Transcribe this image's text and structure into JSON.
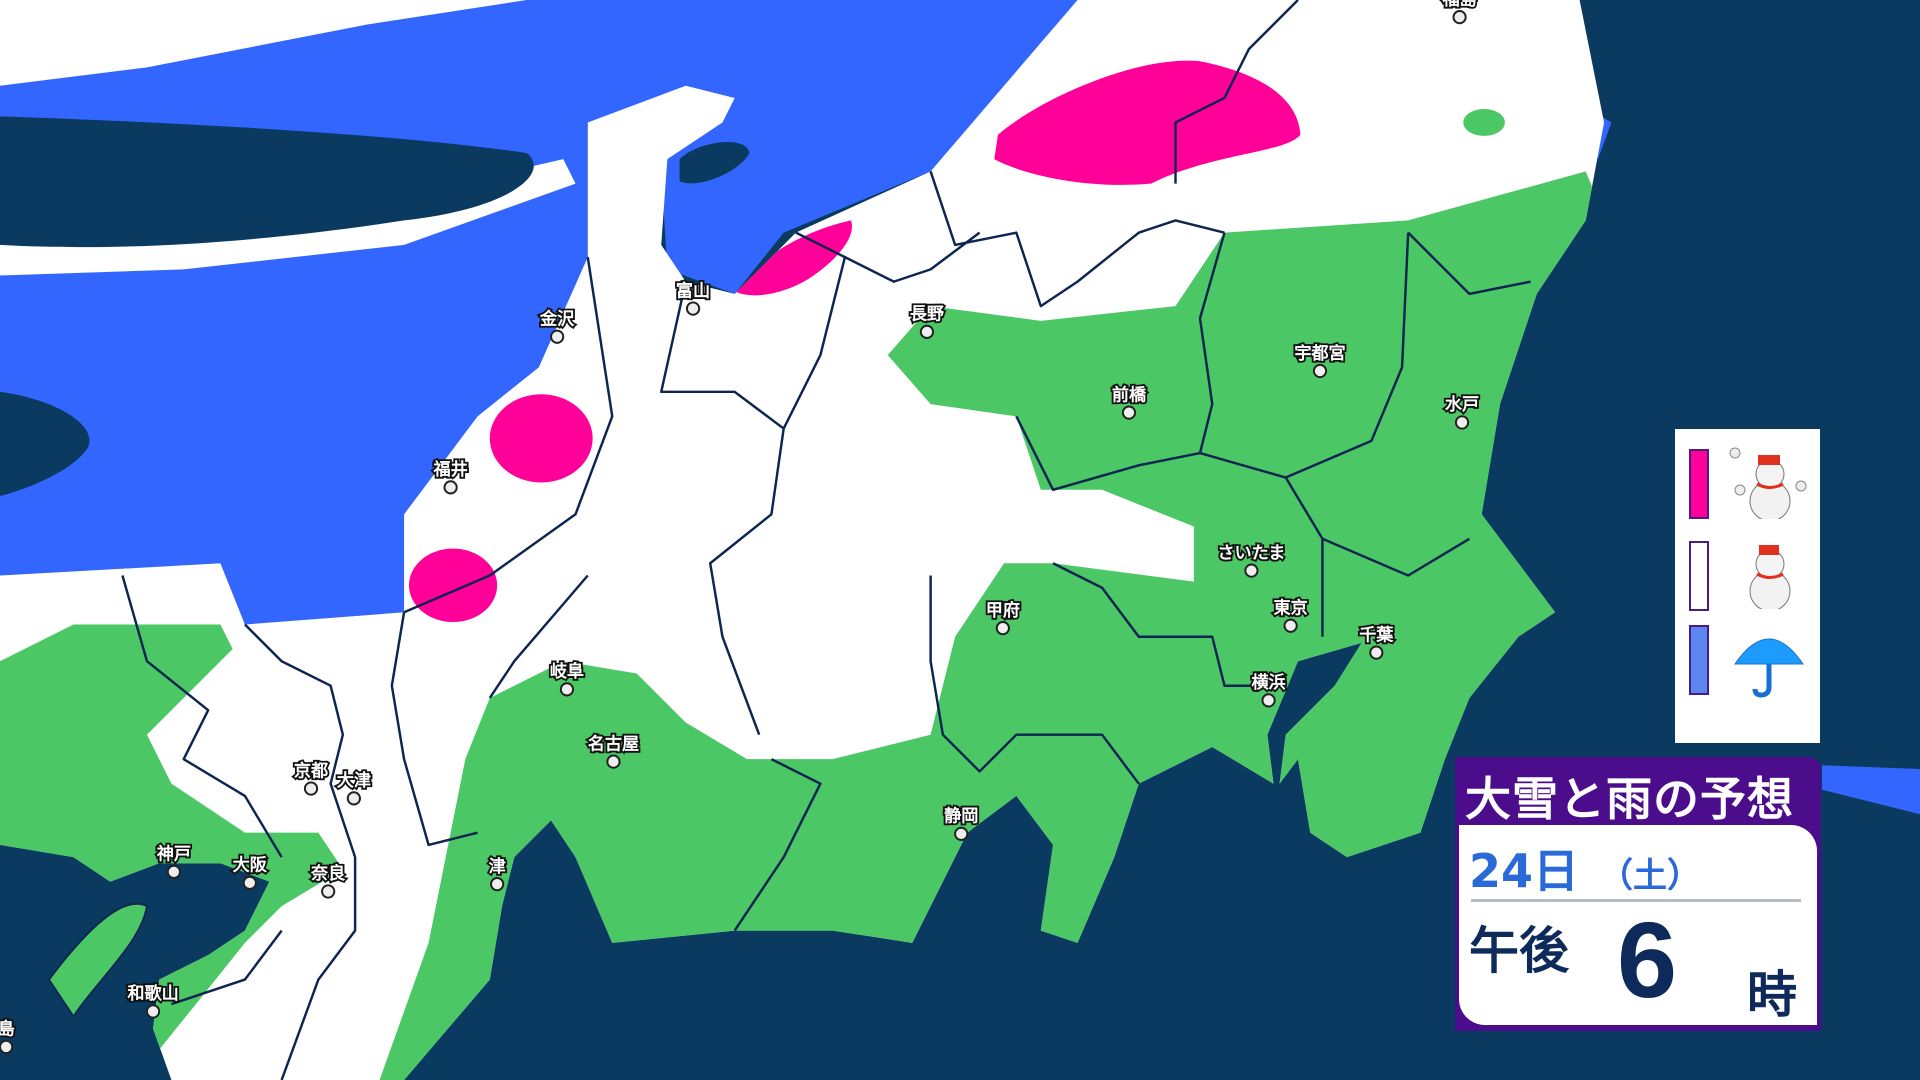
{
  "title": "大雪と雨の予想",
  "date": {
    "day": "24日",
    "weekday": "（土）"
  },
  "time": {
    "period": "午後",
    "hour": "6",
    "unit": "時"
  },
  "legend": [
    {
      "color": "#ff0099",
      "icon": "snowman-heavy-snow-icon"
    },
    {
      "color": "#ffffff",
      "icon": "snowman-snow-icon"
    },
    {
      "color": "#5b86f0",
      "icon": "umbrella-rain-icon"
    }
  ],
  "colors": {
    "sea": "#0b3a60",
    "sea_rain": "#3366ff",
    "snow": "#ffffff",
    "rain": "#4cc765",
    "heavy_snow": "#ff0099",
    "border": "#0d2550"
  },
  "cities": [
    "福島",
    "金沢",
    "富山",
    "長野",
    "前橋",
    "宇都宮",
    "水戸",
    "福井",
    "さいたま",
    "甲府",
    "東京",
    "千葉",
    "横浜",
    "岐阜",
    "名古屋",
    "京都",
    "大津",
    "静岡",
    "神戸",
    "大阪",
    "奈良",
    "津",
    "和歌山",
    "島"
  ]
}
